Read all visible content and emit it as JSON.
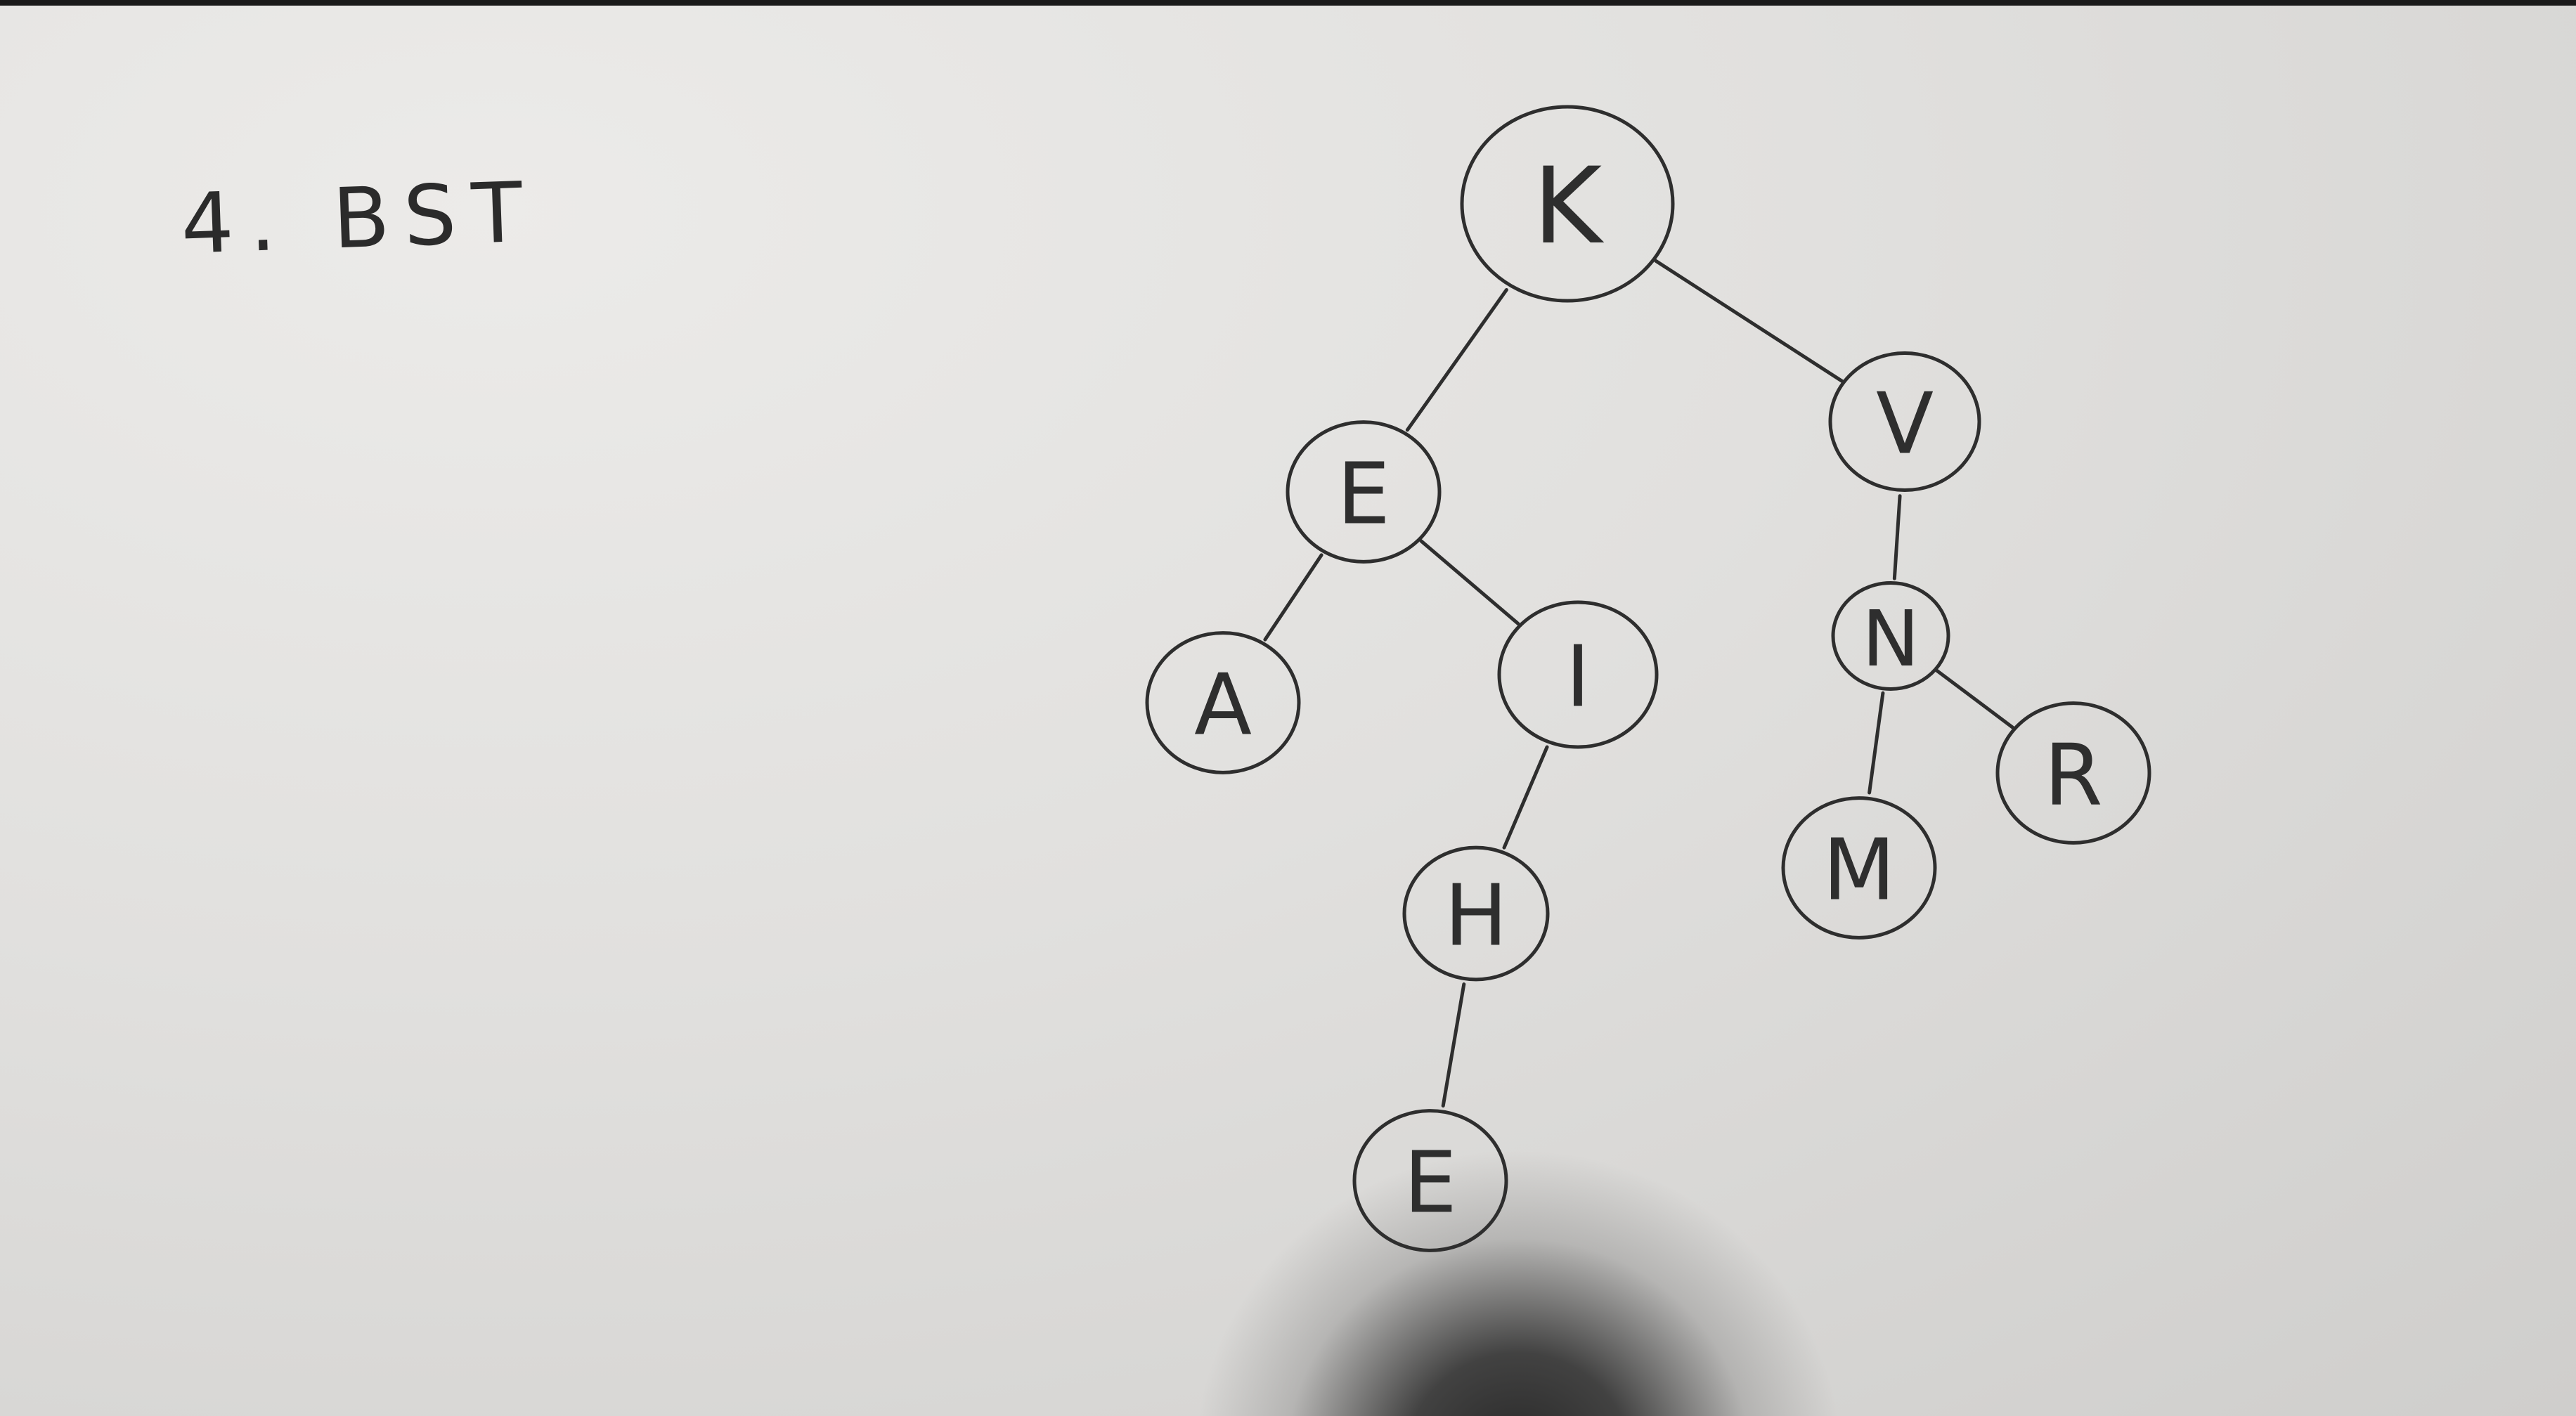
{
  "title": "4. BST",
  "tree": {
    "nodes": [
      {
        "id": "K",
        "label": "K"
      },
      {
        "id": "E1",
        "label": "E"
      },
      {
        "id": "V",
        "label": "V"
      },
      {
        "id": "A",
        "label": "A"
      },
      {
        "id": "I",
        "label": "I"
      },
      {
        "id": "H",
        "label": "H"
      },
      {
        "id": "E2",
        "label": "E"
      },
      {
        "id": "N",
        "label": "N"
      },
      {
        "id": "M",
        "label": "M"
      },
      {
        "id": "R",
        "label": "R"
      }
    ],
    "edges": [
      [
        "K",
        "E1"
      ],
      [
        "K",
        "V"
      ],
      [
        "E1",
        "A"
      ],
      [
        "E1",
        "I"
      ],
      [
        "I",
        "H"
      ],
      [
        "H",
        "E2"
      ],
      [
        "V",
        "N"
      ],
      [
        "N",
        "M"
      ],
      [
        "N",
        "R"
      ]
    ]
  },
  "colors": {
    "ink": "#2e2e2e",
    "paper": "#e3e2e0"
  }
}
